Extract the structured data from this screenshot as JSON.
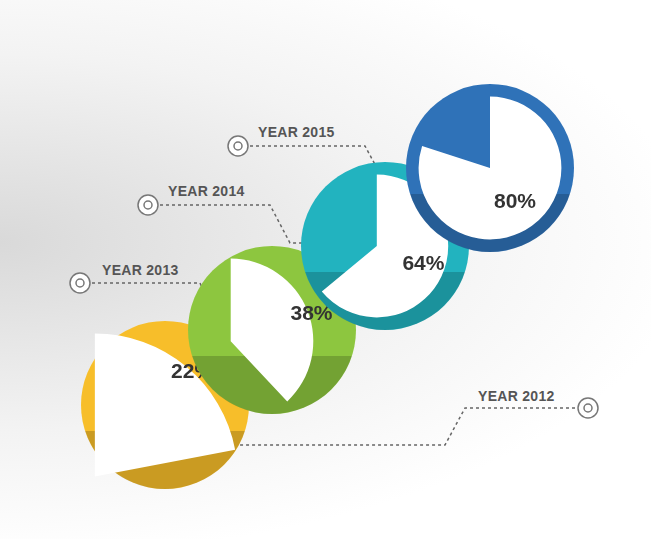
{
  "chart_data": {
    "type": "pie",
    "categories": [
      "YEAR 2012",
      "YEAR 2013",
      "YEAR 2014",
      "YEAR 2015"
    ],
    "values": [
      22,
      38,
      64,
      80
    ],
    "value_labels": [
      "22%",
      "38%",
      "64%",
      "80%"
    ],
    "colors": [
      "#f7be2a",
      "#8dc63f",
      "#22b3bf",
      "#2f72b8"
    ],
    "data_labels": true
  }
}
